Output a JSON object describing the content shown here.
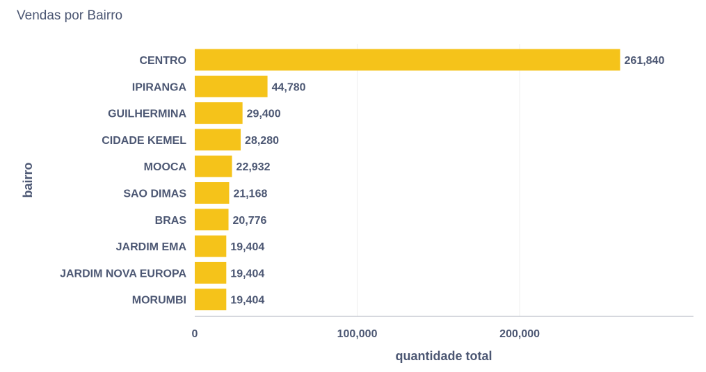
{
  "card": {
    "title": "Vendas por Bairro"
  },
  "colors": {
    "bar": "#f5c31a",
    "text": "#4c5773",
    "grid": "#ededed",
    "axis": "#c8ccd4"
  },
  "chart_data": {
    "type": "bar",
    "orientation": "horizontal",
    "categories": [
      "CENTRO",
      "IPIRANGA",
      "GUILHERMINA",
      "CIDADE KEMEL",
      "MOOCA",
      "SAO DIMAS",
      "BRAS",
      "JARDIM EMA",
      "JARDIM NOVA EUROPA",
      "MORUMBI"
    ],
    "values": [
      261840,
      44780,
      29400,
      28280,
      22932,
      21168,
      20776,
      19404,
      19404,
      19404
    ],
    "value_labels": [
      "261,840",
      "44,780",
      "29,400",
      "28,280",
      "22,932",
      "21,168",
      "20,776",
      "19,404",
      "19,404",
      "19,404"
    ],
    "x_ticks": [
      0,
      100000,
      200000
    ],
    "x_tick_labels": [
      "0",
      "100,000",
      "200,000"
    ],
    "xlim": [
      0,
      307000
    ],
    "xlabel": "quantidade total",
    "ylabel": "bairro",
    "grid": true
  }
}
